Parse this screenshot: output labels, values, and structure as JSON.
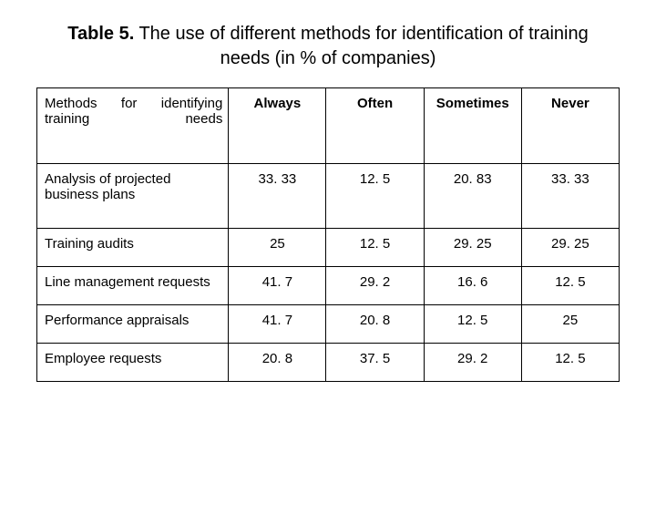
{
  "caption": {
    "label": "Table 5.",
    "text": " The use of different methods for identification of training needs (in % of companies)"
  },
  "table": {
    "type": "table",
    "first_header": "Methods for identifying training needs",
    "columns": [
      "Always",
      "Often",
      "Sometimes",
      "Never"
    ],
    "rows": [
      {
        "label": "Analysis of projected business plans",
        "values": [
          "33. 33",
          "12. 5",
          "20. 83",
          "33. 33"
        ]
      },
      {
        "label": "Training audits",
        "values": [
          "25",
          "12. 5",
          "29. 25",
          "29. 25"
        ]
      },
      {
        "label": "Line management requests",
        "values": [
          "41. 7",
          "29. 2",
          "16. 6",
          "12. 5"
        ]
      },
      {
        "label": "Performance appraisals",
        "values": [
          "41. 7",
          "20. 8",
          "12. 5",
          "25"
        ]
      },
      {
        "label": "Employee requests",
        "values": [
          "20. 8",
          "37. 5",
          "29. 2",
          "12. 5"
        ]
      }
    ],
    "border_color": "#000000",
    "background_color": "#ffffff",
    "header_fontweight": "bold",
    "body_fontsize": 15,
    "caption_fontsize": 20
  }
}
